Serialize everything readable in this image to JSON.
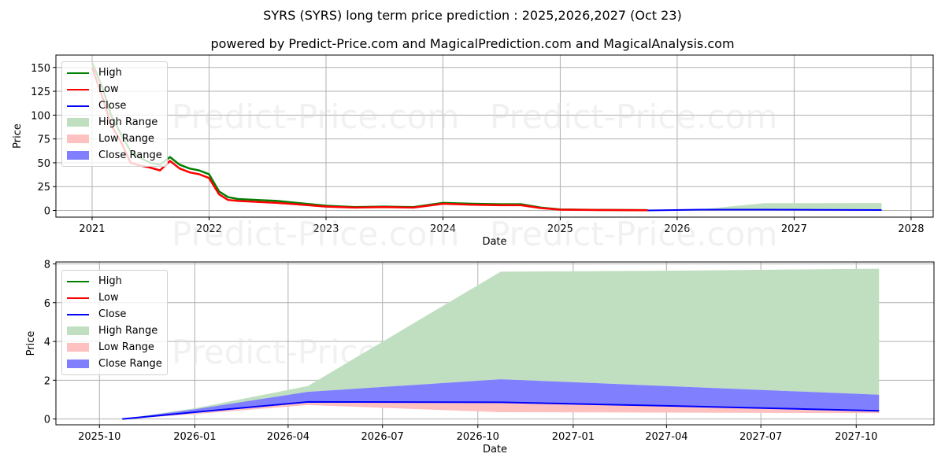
{
  "header": {
    "title": "SYRS (SYRS) long term price prediction : 2025,2026,2027 (Oct 23)",
    "subtitle": "powered by Predict-Price.com and MagicalPrediction.com and MagicalAnalysis.com"
  },
  "watermark": "Predict-Price.com",
  "legend": [
    {
      "label": "High",
      "kind": "line",
      "color": "#008000"
    },
    {
      "label": "Low",
      "kind": "line",
      "color": "#ff0000"
    },
    {
      "label": "Close",
      "kind": "line",
      "color": "#0000ff"
    },
    {
      "label": "High Range",
      "kind": "patch",
      "color": "#c0dfc0"
    },
    {
      "label": "Low Range",
      "kind": "patch",
      "color": "#ffc0c0"
    },
    {
      "label": "Close Range",
      "kind": "patch",
      "color": "#8080ff"
    }
  ],
  "colors": {
    "high": "#008000",
    "low": "#ff0000",
    "close": "#0000ff",
    "high_range": "#c0dfc0",
    "low_range": "#ffc0c0",
    "close_range": "#8080ff"
  },
  "chart_data": [
    {
      "type": "line",
      "title": "",
      "xlabel": "Date",
      "ylabel": "Price",
      "ylim": [
        -7,
        163
      ],
      "xlim": [
        "2020-09-10",
        "2028-03-10"
      ],
      "grid": true,
      "legend_position": "upper left",
      "x_ticks": [
        "2021",
        "2022",
        "2023",
        "2024",
        "2025",
        "2026",
        "2027",
        "2028"
      ],
      "y_ticks": [
        0,
        25,
        50,
        75,
        100,
        125,
        150
      ],
      "x": [
        "2021-01",
        "2021-02",
        "2021-03",
        "2021-04",
        "2021-05",
        "2021-06",
        "2021-07",
        "2021-08",
        "2021-09",
        "2021-10",
        "2021-11",
        "2021-12",
        "2022-01",
        "2022-02",
        "2022-03",
        "2022-04",
        "2022-06",
        "2022-08",
        "2022-10",
        "2023-01",
        "2023-04",
        "2023-07",
        "2023-10",
        "2024-01",
        "2024-04",
        "2024-07",
        "2024-09",
        "2024-11",
        "2025-01",
        "2025-06",
        "2025-10",
        "2026-04",
        "2026-10",
        "2027-04",
        "2027-10"
      ],
      "series": [
        {
          "name": "High",
          "values": [
            155,
            130,
            100,
            80,
            62,
            55,
            50,
            48,
            56,
            48,
            44,
            42,
            38,
            20,
            14,
            12,
            11,
            10,
            8,
            5,
            3.5,
            4,
            3.5,
            8,
            7,
            6.5,
            6.5,
            3,
            1,
            0.5,
            0.3,
            null,
            null,
            null,
            null
          ]
        },
        {
          "name": "Low",
          "values": [
            150,
            120,
            90,
            72,
            50,
            47,
            45,
            42,
            52,
            44,
            40,
            38,
            34,
            17,
            11,
            10,
            9,
            8,
            6.5,
            4,
            3,
            3.5,
            3,
            7,
            6,
            5.5,
            5.5,
            2.5,
            0.8,
            0.4,
            0.25,
            null,
            null,
            null,
            null
          ]
        },
        {
          "name": "Close",
          "values": [
            null,
            null,
            null,
            null,
            null,
            null,
            null,
            null,
            null,
            null,
            null,
            null,
            null,
            null,
            null,
            null,
            null,
            null,
            null,
            null,
            null,
            null,
            null,
            null,
            null,
            null,
            null,
            null,
            null,
            null,
            0.0,
            0.88,
            0.86,
            0.65,
            0.42
          ]
        },
        {
          "name": "High Range",
          "values": [
            null,
            null,
            null,
            null,
            null,
            null,
            null,
            null,
            null,
            null,
            null,
            null,
            null,
            null,
            null,
            null,
            null,
            null,
            null,
            null,
            null,
            null,
            null,
            null,
            null,
            null,
            null,
            null,
            null,
            null,
            0.0,
            1.7,
            7.6,
            7.65,
            7.75
          ]
        }
      ]
    },
    {
      "type": "area",
      "title": "",
      "xlabel": "Date",
      "ylabel": "Price",
      "ylim": [
        -0.3,
        8.1
      ],
      "xlim": [
        "2025-08-20",
        "2027-12-15"
      ],
      "grid": true,
      "legend_position": "upper left",
      "x_ticks": [
        "2025-10",
        "2026-01",
        "2026-04",
        "2026-07",
        "2026-10",
        "2027-01",
        "2027-04",
        "2027-07",
        "2027-10"
      ],
      "y_ticks": [
        0,
        2,
        4,
        6,
        8
      ],
      "x": [
        "2025-10-23",
        "2026-01-01",
        "2026-04-20",
        "2026-10-23",
        "2027-04-01",
        "2027-10-23"
      ],
      "series": [
        {
          "name": "Close",
          "values": [
            0.0,
            0.35,
            0.88,
            0.86,
            0.68,
            0.42
          ]
        },
        {
          "name": "High Range",
          "lower": [
            0.0,
            0.38,
            1.4,
            2.05,
            1.7,
            1.25
          ],
          "upper": [
            0.0,
            0.55,
            1.7,
            7.6,
            7.65,
            7.75
          ]
        },
        {
          "name": "Close Range",
          "lower": [
            0.0,
            0.3,
            0.72,
            0.35,
            0.35,
            0.32
          ],
          "upper": [
            0.0,
            0.5,
            1.4,
            2.05,
            1.7,
            1.25
          ]
        },
        {
          "name": "Low Range",
          "lower": [
            0.0,
            0.25,
            0.72,
            0.35,
            0.33,
            0.3
          ],
          "upper": [
            0.0,
            0.3,
            0.85,
            0.86,
            0.68,
            0.42
          ]
        }
      ]
    }
  ]
}
